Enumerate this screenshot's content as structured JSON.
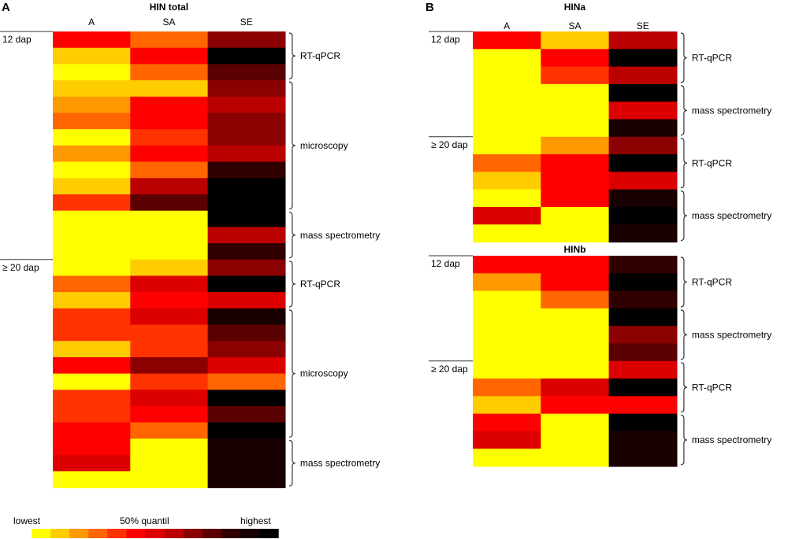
{
  "chart_data": [
    {
      "type": "heatmap",
      "panel_letter": "A",
      "title": "HIN total",
      "columns": [
        "A",
        "SA",
        "SE"
      ],
      "row_labels": [
        {
          "text": "12 dap",
          "row": 0
        },
        {
          "text": "≥ 20 dap",
          "row": 14
        }
      ],
      "groups": [
        {
          "label": "RT-qPCR",
          "from": 0,
          "to": 2
        },
        {
          "label": "microscopy",
          "from": 3,
          "to": 10
        },
        {
          "label": "mass spectrometry",
          "from": 11,
          "to": 13
        },
        {
          "label": "RT-qPCR",
          "from": 14,
          "to": 16
        },
        {
          "label": "microscopy",
          "from": 17,
          "to": 24
        },
        {
          "label": "mass spectrometry",
          "from": 25,
          "to": 27
        }
      ],
      "values": [
        [
          5,
          3,
          8
        ],
        [
          1,
          5,
          12
        ],
        [
          0,
          3,
          9
        ],
        [
          1,
          1,
          8
        ],
        [
          2,
          5,
          7
        ],
        [
          3,
          5,
          8
        ],
        [
          0,
          4,
          8
        ],
        [
          2,
          5,
          7
        ],
        [
          0,
          3,
          10
        ],
        [
          1,
          7,
          12
        ],
        [
          4,
          9,
          12
        ],
        [
          0,
          0,
          12
        ],
        [
          0,
          0,
          7
        ],
        [
          0,
          0,
          10
        ],
        [
          0,
          1,
          8
        ],
        [
          3,
          6,
          12
        ],
        [
          1,
          5,
          6
        ],
        [
          4,
          6,
          11
        ],
        [
          4,
          4,
          9
        ],
        [
          1,
          4,
          8
        ],
        [
          5,
          8,
          6
        ],
        [
          0,
          4,
          3
        ],
        [
          4,
          6,
          12
        ],
        [
          4,
          5,
          9
        ],
        [
          5,
          3,
          12
        ],
        [
          5,
          0,
          11
        ],
        [
          6,
          0,
          11
        ],
        [
          0,
          0,
          11
        ]
      ]
    },
    {
      "type": "heatmap",
      "panel_letter": "B",
      "title": "HINa",
      "columns": [
        "A",
        "SA",
        "SE"
      ],
      "row_labels": [
        {
          "text": "12 dap",
          "row": 0
        },
        {
          "text": "≥ 20 dap",
          "row": 6
        }
      ],
      "groups": [
        {
          "label": "RT-qPCR",
          "from": 0,
          "to": 2
        },
        {
          "label": "mass spectrometry",
          "from": 3,
          "to": 5
        },
        {
          "label": "RT-qPCR",
          "from": 6,
          "to": 8
        },
        {
          "label": "mass spectrometry",
          "from": 9,
          "to": 11
        }
      ],
      "values": [
        [
          5,
          1,
          7
        ],
        [
          0,
          5,
          12
        ],
        [
          0,
          4,
          7
        ],
        [
          0,
          0,
          12
        ],
        [
          0,
          0,
          6
        ],
        [
          0,
          0,
          11
        ],
        [
          0,
          2,
          8
        ],
        [
          3,
          5,
          12
        ],
        [
          1,
          5,
          6
        ],
        [
          0,
          5,
          11
        ],
        [
          6,
          0,
          12
        ],
        [
          0,
          0,
          11
        ]
      ]
    },
    {
      "type": "heatmap",
      "title": "HINb",
      "columns": [
        "A",
        "SA",
        "SE"
      ],
      "row_labels": [
        {
          "text": "12 dap",
          "row": 0
        },
        {
          "text": "≥ 20 dap",
          "row": 6
        }
      ],
      "groups": [
        {
          "label": "RT-qPCR",
          "from": 0,
          "to": 2
        },
        {
          "label": "mass spectrometry",
          "from": 3,
          "to": 5
        },
        {
          "label": "RT-qPCR",
          "from": 6,
          "to": 8
        },
        {
          "label": "mass spectrometry",
          "from": 9,
          "to": 11
        }
      ],
      "values": [
        [
          5,
          5,
          10
        ],
        [
          2,
          5,
          12
        ],
        [
          0,
          3,
          10
        ],
        [
          0,
          0,
          12
        ],
        [
          0,
          0,
          8
        ],
        [
          0,
          0,
          9
        ],
        [
          0,
          0,
          6
        ],
        [
          3,
          6,
          12
        ],
        [
          1,
          5,
          5
        ],
        [
          5,
          0,
          12
        ],
        [
          6,
          0,
          11
        ],
        [
          0,
          0,
          11
        ]
      ]
    }
  ],
  "legend": {
    "low_label": "lowest",
    "mid_label": "50% quantil",
    "high_label": "highest",
    "scale": [
      "#ffff00",
      "#ffcc00",
      "#ff9900",
      "#ff6600",
      "#ff3300",
      "#ff0000",
      "#dd0000",
      "#bb0000",
      "#8b0000",
      "#5a0000",
      "#300000",
      "#180000",
      "#000000"
    ]
  }
}
